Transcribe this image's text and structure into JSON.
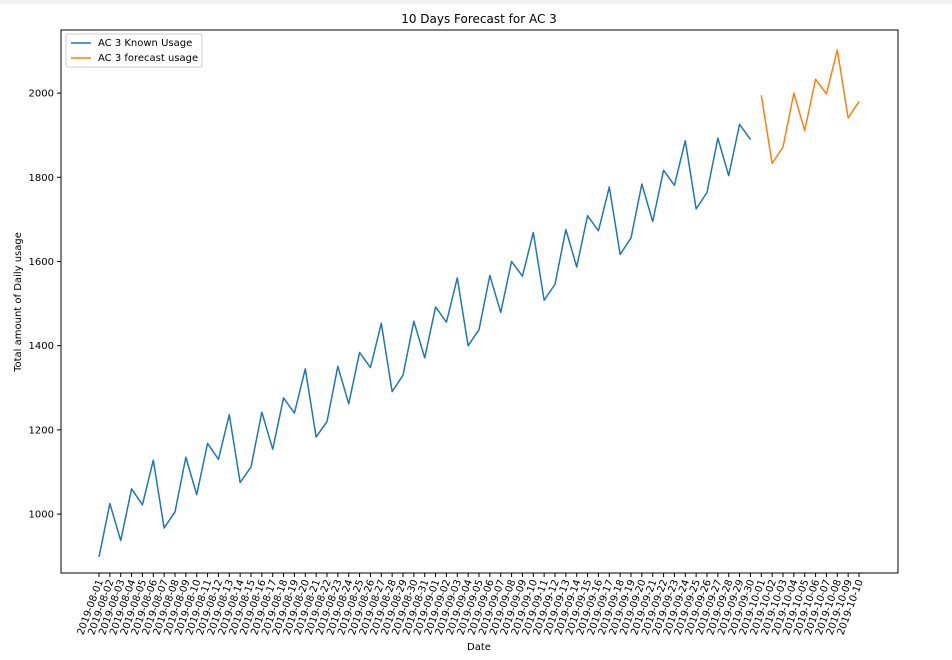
{
  "chart_data": {
    "type": "line",
    "title": "10 Days Forecast for AC 3",
    "xlabel": "Date",
    "ylabel": "Total amount of Daily usage",
    "ylim": [
      860,
      2150
    ],
    "yticks": [
      1000,
      1200,
      1400,
      1600,
      1800,
      2000
    ],
    "legend_position": "top-left",
    "grid": false,
    "x": [
      "2019-08-01",
      "2019-08-02",
      "2019-08-03",
      "2019-08-04",
      "2019-08-05",
      "2019-08-06",
      "2019-08-07",
      "2019-08-08",
      "2019-08-09",
      "2019-08-10",
      "2019-08-11",
      "2019-08-12",
      "2019-08-13",
      "2019-08-14",
      "2019-08-15",
      "2019-08-16",
      "2019-08-17",
      "2019-08-18",
      "2019-08-19",
      "2019-08-20",
      "2019-08-21",
      "2019-08-22",
      "2019-08-23",
      "2019-08-24",
      "2019-08-25",
      "2019-08-26",
      "2019-08-27",
      "2019-08-28",
      "2019-08-29",
      "2019-08-30",
      "2019-08-31",
      "2019-09-01",
      "2019-09-02",
      "2019-09-03",
      "2019-09-04",
      "2019-09-05",
      "2019-09-06",
      "2019-09-07",
      "2019-09-08",
      "2019-09-09",
      "2019-09-10",
      "2019-09-11",
      "2019-09-12",
      "2019-09-13",
      "2019-09-14",
      "2019-09-15",
      "2019-09-16",
      "2019-09-17",
      "2019-09-18",
      "2019-09-19",
      "2019-09-20",
      "2019-09-21",
      "2019-09-22",
      "2019-09-23",
      "2019-09-24",
      "2019-09-25",
      "2019-09-26",
      "2019-09-27",
      "2019-09-28",
      "2019-09-29",
      "2019-09-30",
      "2019-10-01",
      "2019-10-02",
      "2019-10-03",
      "2019-10-04",
      "2019-10-05",
      "2019-10-06",
      "2019-10-07",
      "2019-10-08",
      "2019-10-09",
      "2019-10-10"
    ],
    "series": [
      {
        "name": "AC 3  Known Usage",
        "color": "#1f77b4",
        "points": [
          [
            "2019-08-01",
            898
          ],
          [
            "2019-08-02",
            1025
          ],
          [
            "2019-08-03",
            937
          ],
          [
            "2019-08-04",
            1060
          ],
          [
            "2019-08-05",
            1022
          ],
          [
            "2019-08-06",
            1128
          ],
          [
            "2019-08-07",
            967
          ],
          [
            "2019-08-08",
            1005
          ],
          [
            "2019-08-09",
            1135
          ],
          [
            "2019-08-10",
            1046
          ],
          [
            "2019-08-11",
            1168
          ],
          [
            "2019-08-12",
            1130
          ],
          [
            "2019-08-13",
            1236
          ],
          [
            "2019-08-14",
            1075
          ],
          [
            "2019-08-15",
            1112
          ],
          [
            "2019-08-16",
            1242
          ],
          [
            "2019-08-17",
            1154
          ],
          [
            "2019-08-18",
            1276
          ],
          [
            "2019-08-19",
            1240
          ],
          [
            "2019-08-20",
            1345
          ],
          [
            "2019-08-21",
            1183
          ],
          [
            "2019-08-22",
            1220
          ],
          [
            "2019-08-23",
            1351
          ],
          [
            "2019-08-24",
            1262
          ],
          [
            "2019-08-25",
            1384
          ],
          [
            "2019-08-26",
            1348
          ],
          [
            "2019-08-27",
            1453
          ],
          [
            "2019-08-28",
            1291
          ],
          [
            "2019-08-29",
            1330
          ],
          [
            "2019-08-30",
            1458
          ],
          [
            "2019-08-31",
            1371
          ],
          [
            "2019-09-01",
            1492
          ],
          [
            "2019-09-02",
            1456
          ],
          [
            "2019-09-03",
            1561
          ],
          [
            "2019-09-04",
            1400
          ],
          [
            "2019-09-05",
            1438
          ],
          [
            "2019-09-06",
            1567
          ],
          [
            "2019-09-07",
            1479
          ],
          [
            "2019-09-08",
            1600
          ],
          [
            "2019-09-09",
            1565
          ],
          [
            "2019-09-10",
            1669
          ],
          [
            "2019-09-11",
            1508
          ],
          [
            "2019-09-12",
            1546
          ],
          [
            "2019-09-13",
            1676
          ],
          [
            "2019-09-14",
            1587
          ],
          [
            "2019-09-15",
            1709
          ],
          [
            "2019-09-16",
            1673
          ],
          [
            "2019-09-17",
            1777
          ],
          [
            "2019-09-18",
            1617
          ],
          [
            "2019-09-19",
            1656
          ],
          [
            "2019-09-20",
            1784
          ],
          [
            "2019-09-21",
            1695
          ],
          [
            "2019-09-22",
            1817
          ],
          [
            "2019-09-23",
            1781
          ],
          [
            "2019-09-24",
            1887
          ],
          [
            "2019-09-25",
            1725
          ],
          [
            "2019-09-26",
            1764
          ],
          [
            "2019-09-27",
            1893
          ],
          [
            "2019-09-28",
            1804
          ],
          [
            "2019-09-29",
            1926
          ],
          [
            "2019-09-30",
            1890
          ]
        ]
      },
      {
        "name": "AC 3 forecast usage",
        "color": "#ff7f0e",
        "points": [
          [
            "2019-10-01",
            1995
          ],
          [
            "2019-10-02",
            1833
          ],
          [
            "2019-10-03",
            1872
          ],
          [
            "2019-10-04",
            2000
          ],
          [
            "2019-10-05",
            1911
          ],
          [
            "2019-10-06",
            2033
          ],
          [
            "2019-10-07",
            1998
          ],
          [
            "2019-10-08",
            2103
          ],
          [
            "2019-10-09",
            1941
          ],
          [
            "2019-10-10",
            1980
          ]
        ]
      }
    ]
  }
}
